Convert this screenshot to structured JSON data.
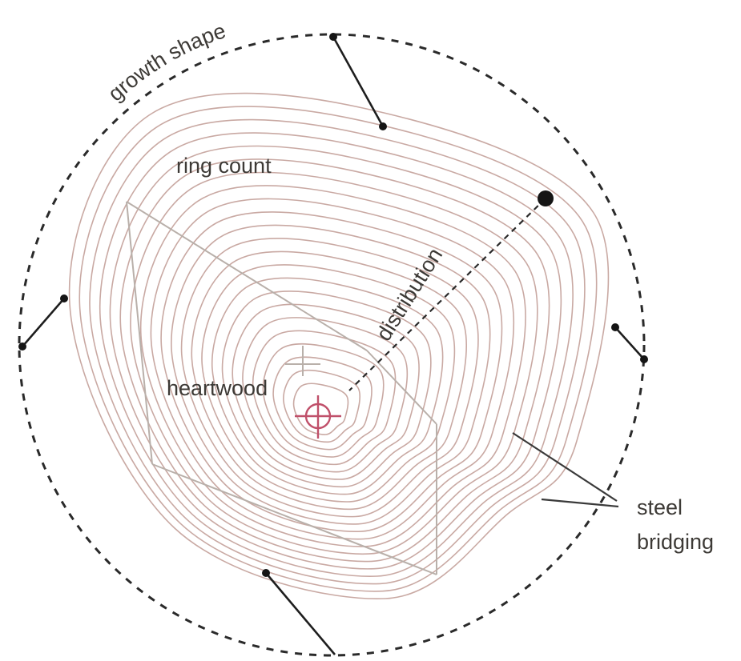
{
  "labels": {
    "growth_shape": "growth shape",
    "ring_count": "ring count",
    "distribution": "distribution",
    "heartwood": "heartwood",
    "steel_line1": "steel",
    "steel_line2": "bridging"
  },
  "rings": {
    "count": 23,
    "color": "#c9a9a3"
  },
  "colors": {
    "center_marker": "#c0506a",
    "boundary": "#2a2a2a",
    "frame": "#b9b0aa",
    "text": "#3d3a36"
  }
}
